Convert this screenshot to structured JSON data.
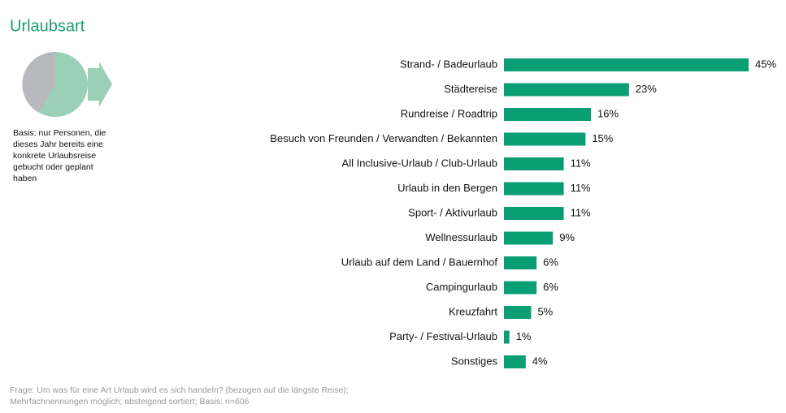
{
  "chart_data": {
    "type": "bar",
    "orientation": "horizontal",
    "title": "Urlaubsart",
    "note": [
      "Basis: nur Personen, die",
      "dieses Jahr bereits eine",
      "konkrete Urlaubsreise",
      "gebucht oder geplant",
      "haben"
    ],
    "footer": [
      "Frage: Um was für eine Art Urlaub wird es sich handeln? (bezogen auf die längste Reise);",
      "Mehrfachnennungen möglich; absteigend sortiert; Basis: n=606"
    ],
    "categories": [
      "Strand- / Badeurlaub",
      "Städtereise",
      "Rundreise / Roadtrip",
      "Besuch von Freunden / Verwandten / Bekannten",
      "All Inclusive-Urlaub / Club-Urlaub",
      "Urlaub in den Bergen",
      "Sport- / Aktivurlaub",
      "Wellnessurlaub",
      "Urlaub auf dem Land / Bauernhof",
      "Campingurlaub",
      "Kreuzfahrt",
      "Party- / Festival-Urlaub",
      "Sonstiges"
    ],
    "values": [
      45,
      23,
      16,
      15,
      11,
      11,
      11,
      9,
      6,
      6,
      5,
      1,
      4
    ],
    "value_labels": [
      "45%",
      "23%",
      "16%",
      "15%",
      "11%",
      "11%",
      "11%",
      "9%",
      "6%",
      "6%",
      "5%",
      "1%",
      "4%"
    ],
    "color": "#0a9e74"
  }
}
